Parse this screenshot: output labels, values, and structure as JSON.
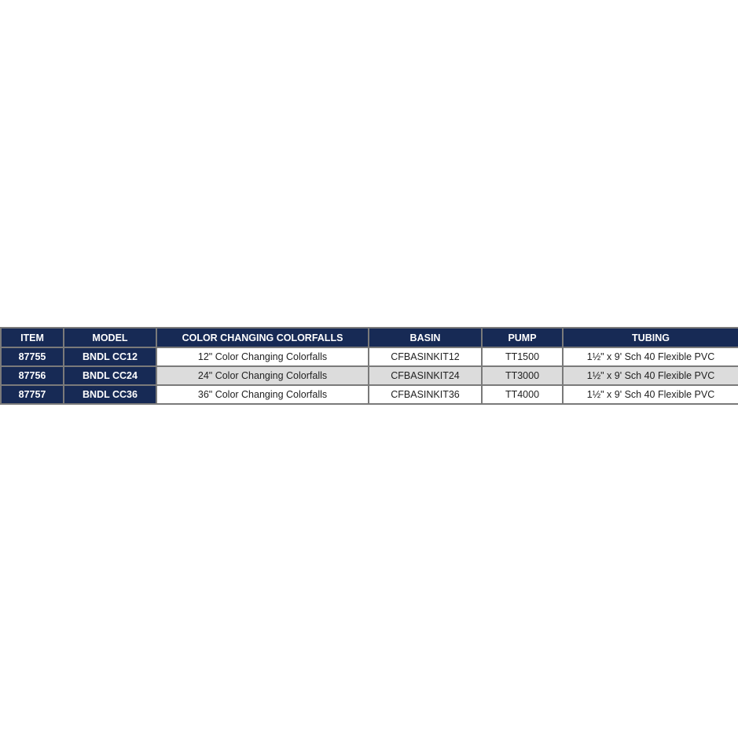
{
  "table": {
    "headers": [
      "ITEM",
      "MODEL",
      "COLOR CHANGING COLORFALLS",
      "BASIN",
      "PUMP",
      "TUBING"
    ],
    "rows": [
      [
        "87755",
        "BNDL CC12",
        "12\" Color Changing Colorfalls",
        "CFBASINKIT12",
        "TT1500",
        "1½\" x 9' Sch 40 Flexible PVC"
      ],
      [
        "87756",
        "BNDL CC24",
        "24\" Color Changing Colorfalls",
        "CFBASINKIT24",
        "TT3000",
        "1½\" x 9' Sch 40 Flexible PVC"
      ],
      [
        "87757",
        "BNDL CC36",
        "36\" Color Changing Colorfalls",
        "CFBASINKIT36",
        "TT4000",
        "1½\" x 9' Sch 40 Flexible PVC"
      ]
    ],
    "colors": {
      "header": "#172a55",
      "alt_row": "#dcdcdc",
      "border": "#7a7a7a"
    }
  }
}
